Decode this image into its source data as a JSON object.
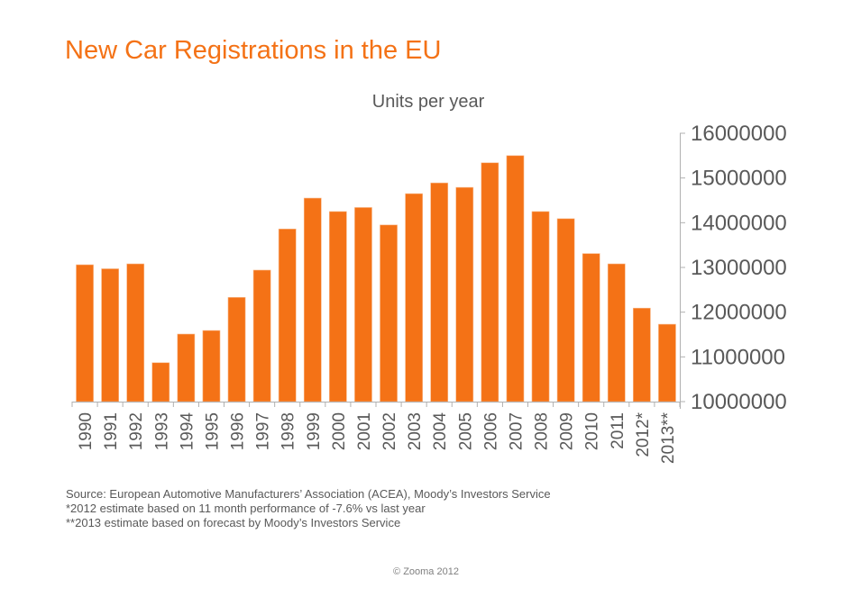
{
  "colors": {
    "bar": "#f47216",
    "title": "#f47216",
    "axis": "#b0b0b0",
    "text": "#595959"
  },
  "chart_data": {
    "type": "bar",
    "title": "New Car Registrations in the EU",
    "subtitle": "Units per year",
    "xlabel": "",
    "ylabel": "Units per year",
    "y_axis_side": "right",
    "ylim": [
      10000000,
      16000000
    ],
    "yticks": [
      10000000,
      11000000,
      12000000,
      13000000,
      14000000,
      15000000,
      16000000
    ],
    "ytick_labels": [
      "10000000",
      "11000000",
      "12000000",
      "13000000",
      "14000000",
      "15000000",
      "16000000"
    ],
    "grid": false,
    "legend": "none",
    "categories": [
      "1990",
      "1991",
      "1992",
      "1993",
      "1994",
      "1995",
      "1996",
      "1997",
      "1998",
      "1999",
      "2000",
      "2001",
      "2002",
      "2003",
      "2004",
      "2005",
      "2006",
      "2007",
      "2008",
      "2009",
      "2010",
      "2011",
      "2012*",
      "2013**"
    ],
    "series": [
      {
        "name": "New car registrations",
        "values": [
          13060000,
          12970000,
          13080000,
          10870000,
          11510000,
          11590000,
          12330000,
          12940000,
          13860000,
          14550000,
          14250000,
          14340000,
          13950000,
          14650000,
          14890000,
          14790000,
          15340000,
          15500000,
          14250000,
          14090000,
          13310000,
          13080000,
          12090000,
          11730000
        ]
      }
    ]
  },
  "notes": [
    "Source: European Automotive Manufacturers’ Association (ACEA), Moody’s Investors Service",
    "*2012 estimate based on 11 month performance of -7.6% vs last year",
    "**2013 estimate based on forecast by Moody’s Investors Service"
  ],
  "copyright": "© Zooma 2012"
}
